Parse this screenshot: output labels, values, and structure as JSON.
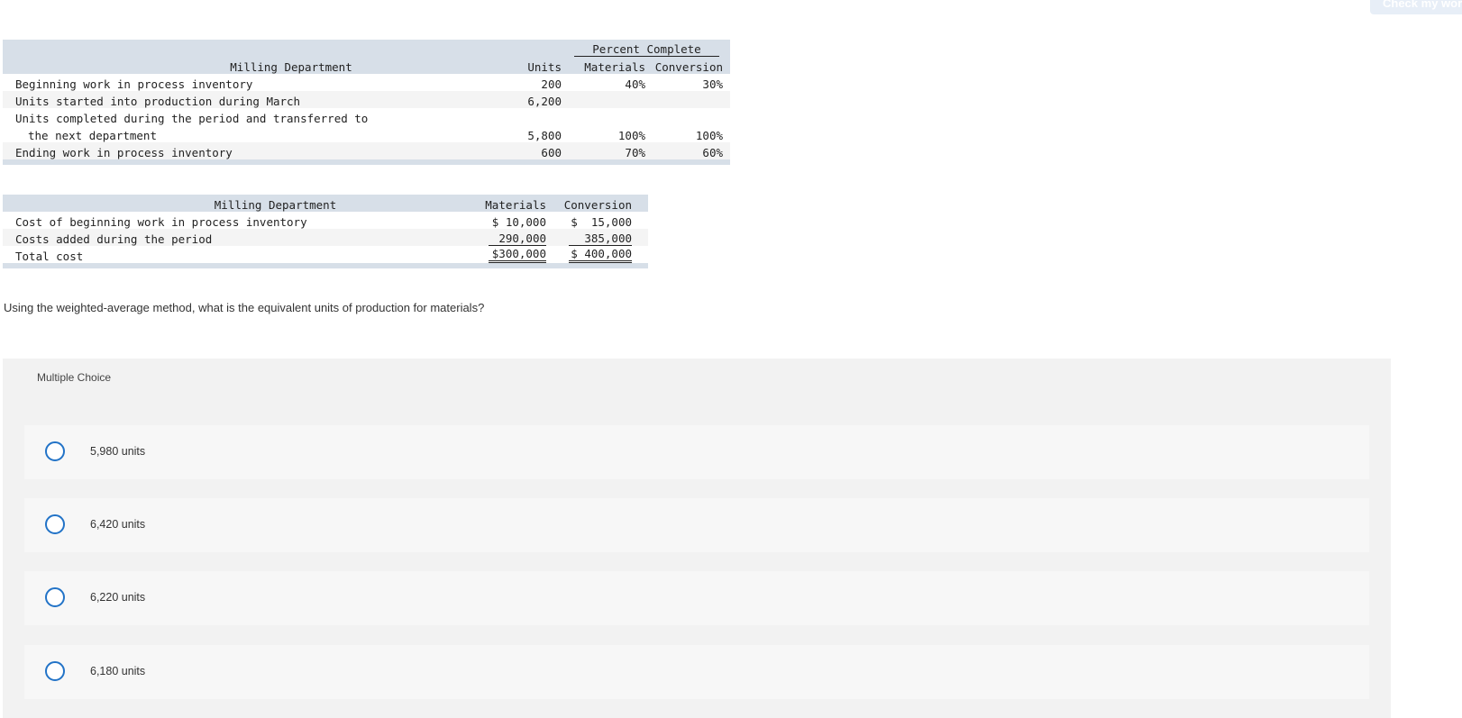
{
  "header": {
    "check_button_label": "Check my work"
  },
  "units_table": {
    "dept_title": "Milling Department",
    "group_header": "Percent Complete",
    "col_units": "Units",
    "col_materials": "Materials",
    "col_conversion": "Conversion",
    "rows": [
      {
        "label": "Beginning work in process inventory",
        "units": "200",
        "materials": "40%",
        "conversion": "30%"
      },
      {
        "label": "Units started into production during March",
        "units": "6,200",
        "materials": "",
        "conversion": ""
      },
      {
        "label": "Units completed during the period and transferred to",
        "units": "",
        "materials": "",
        "conversion": ""
      },
      {
        "label": "the next department",
        "units": "5,800",
        "materials": "100%",
        "conversion": "100%"
      },
      {
        "label": "Ending work in process inventory",
        "units": "600",
        "materials": "70%",
        "conversion": "60%"
      }
    ]
  },
  "cost_table": {
    "dept_title": "Milling Department",
    "col_materials": "Materials",
    "col_conversion": "Conversion",
    "rows": [
      {
        "label": "Cost of beginning work in process inventory",
        "materials": "$ 10,000",
        "conversion": "$  15,000"
      },
      {
        "label": "Costs added during the period",
        "materials": "290,000",
        "conversion": "385,000"
      },
      {
        "label": "Total cost",
        "materials": "$300,000",
        "conversion": "$ 400,000"
      }
    ]
  },
  "question": "Using the weighted-average method, what is the equivalent units of production for materials?",
  "multiple_choice": {
    "title": "Multiple Choice",
    "options": [
      {
        "label": "5,980 units"
      },
      {
        "label": "6,420 units"
      },
      {
        "label": "6,220 units"
      },
      {
        "label": "6,180 units"
      }
    ]
  },
  "colors": {
    "header_band": "#d7dfe8",
    "radio_border": "#2273c7",
    "panel_bg": "#f2f2f2"
  }
}
